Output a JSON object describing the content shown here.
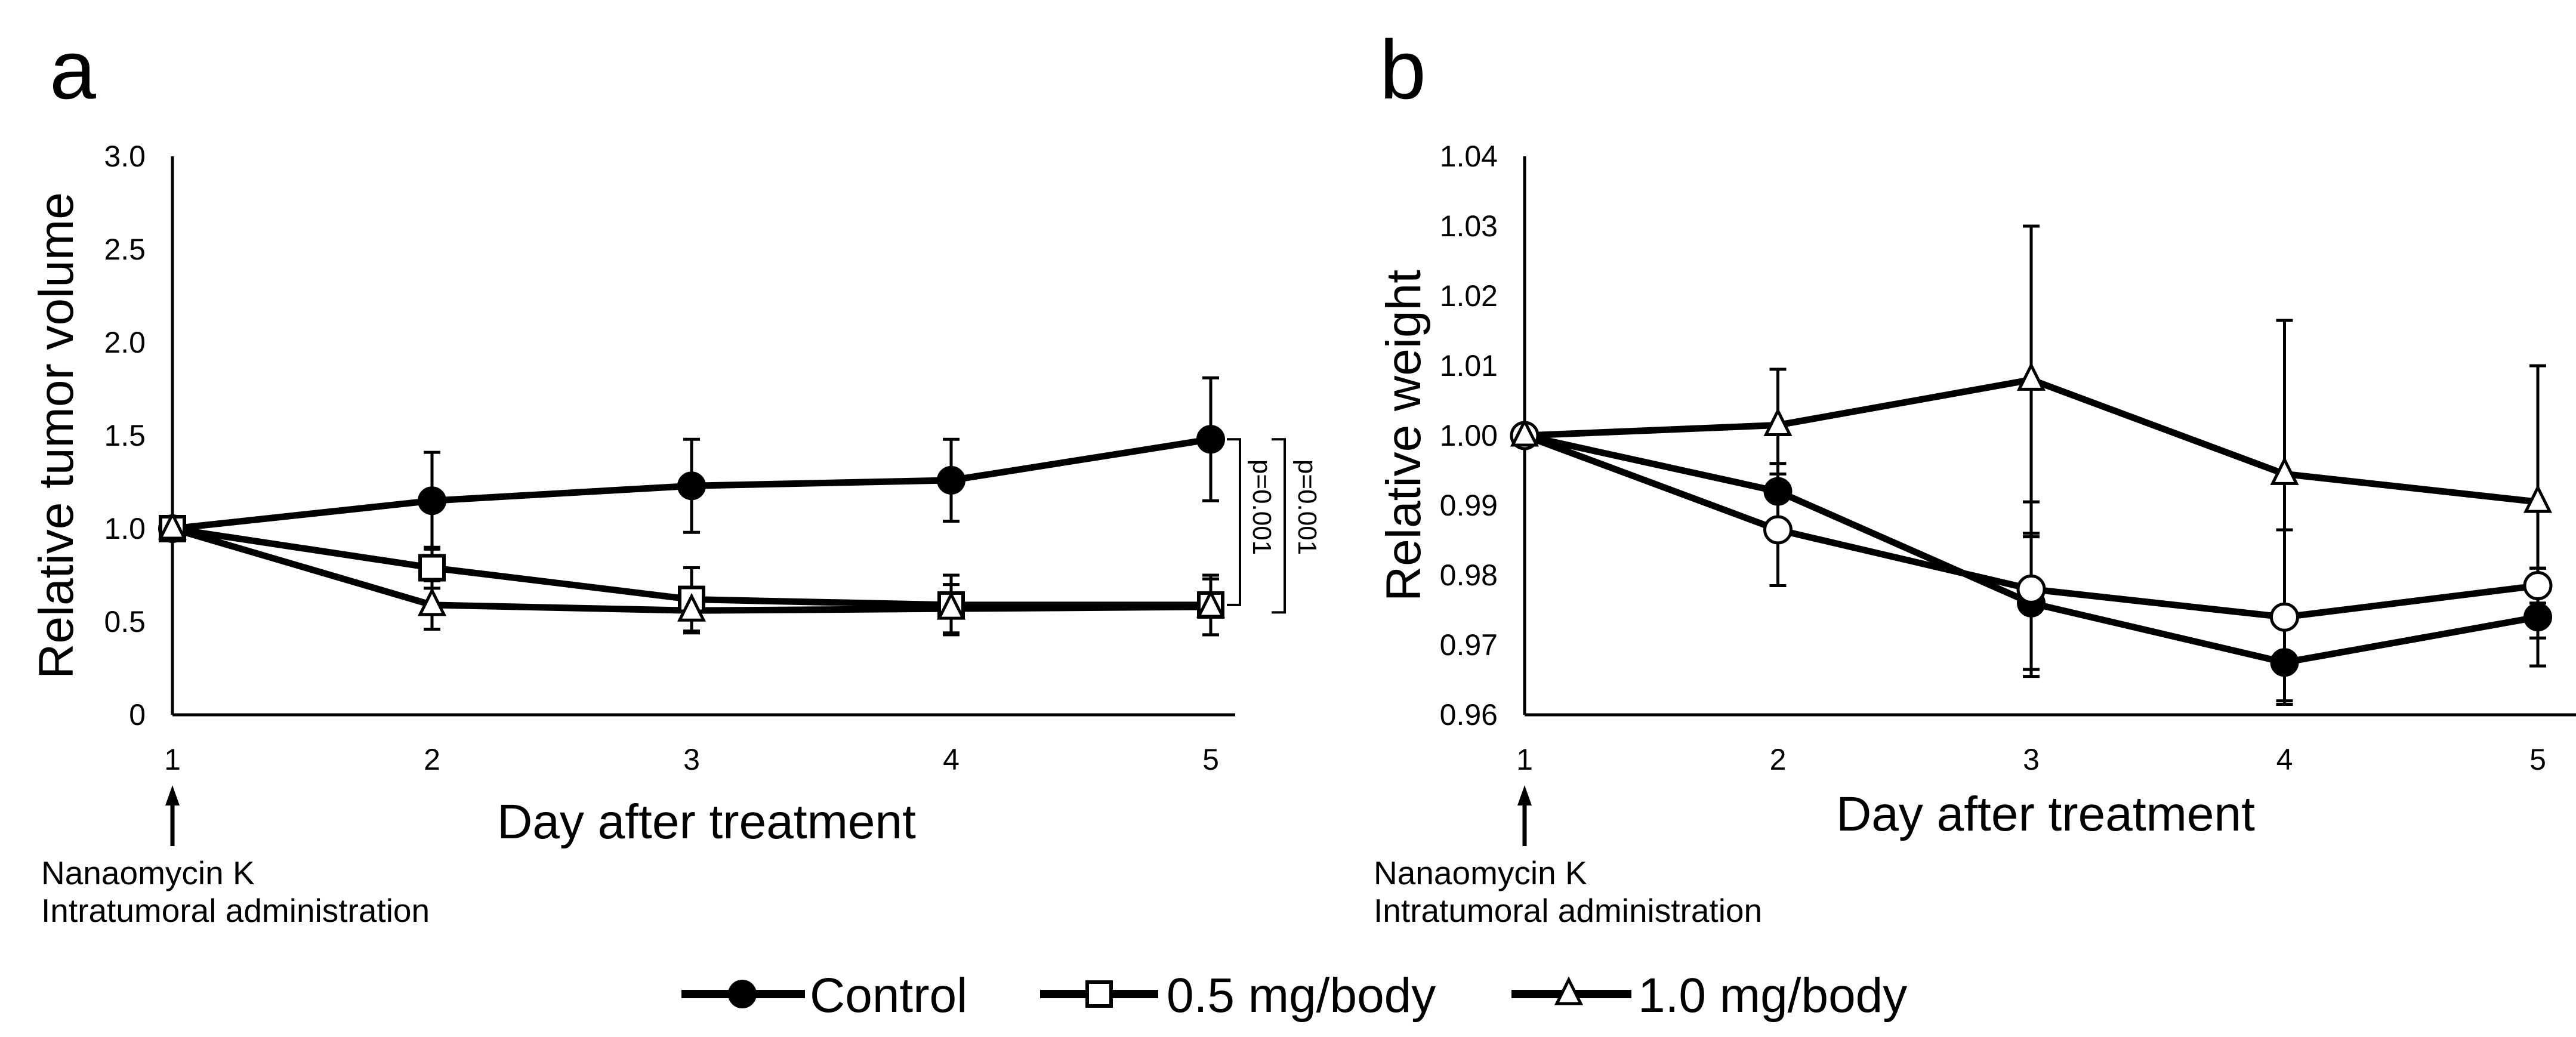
{
  "chart_data": [
    {
      "type": "line",
      "panel_label": "a",
      "xlabel": "Day after treatment",
      "ylabel": "Relative tumor volume",
      "x": [
        1,
        2,
        3,
        4,
        5
      ],
      "x_tick_labels": [
        "1",
        "2",
        "3",
        "4",
        "5"
      ],
      "ylim": [
        0,
        3.0
      ],
      "y_tick_labels": [
        "0",
        "0.5",
        "1.0",
        "1.5",
        "2.0",
        "2.5",
        "3.0"
      ],
      "y_ticks": [
        0,
        0.5,
        1.0,
        1.5,
        2.0,
        2.5,
        3.0
      ],
      "series": [
        {
          "name": "Control",
          "marker": "filled-circle",
          "values": [
            1.0,
            1.15,
            1.23,
            1.26,
            1.48
          ],
          "errors": [
            0,
            0.26,
            0.25,
            0.22,
            0.33
          ]
        },
        {
          "name": "0.5 mg/body",
          "marker": "open-square",
          "values": [
            1.0,
            0.79,
            0.62,
            0.59,
            0.59
          ],
          "errors": [
            0,
            0.11,
            0.17,
            0.16,
            0.16
          ]
        },
        {
          "name": "1.0 mg/body",
          "marker": "open-triangle",
          "values": [
            1.0,
            0.59,
            0.56,
            0.57,
            0.58
          ],
          "errors": [
            0,
            0.13,
            0.12,
            0.13,
            0.15
          ]
        }
      ],
      "annotations": {
        "arrow_note_line1": "Nanaomycin K",
        "arrow_note_line2": "Intratumoral administration",
        "p_values": [
          {
            "label": "p=0.001",
            "between": [
              "Control",
              "0.5 mg/body"
            ],
            "range": [
              1.48,
              0.59
            ]
          },
          {
            "label": "p=0.001",
            "between": [
              "Control",
              "1.0 mg/body"
            ],
            "range": [
              1.48,
              0.55
            ]
          }
        ]
      },
      "grid": false
    },
    {
      "type": "line",
      "panel_label": "b",
      "xlabel": "Day after treatment",
      "ylabel": "Relative weight",
      "x": [
        1,
        2,
        3,
        4,
        5
      ],
      "x_tick_labels": [
        "1",
        "2",
        "3",
        "4",
        "5"
      ],
      "ylim": [
        0.96,
        1.04
      ],
      "y_tick_labels": [
        "0.96",
        "0.97",
        "0.98",
        "0.99",
        "1.00",
        "1.01",
        "1.02",
        "1.03",
        "1.04"
      ],
      "y_ticks": [
        0.96,
        0.97,
        0.98,
        0.99,
        1.0,
        1.01,
        1.02,
        1.03,
        1.04
      ],
      "series": [
        {
          "name": "Control",
          "marker": "filled-circle",
          "values": [
            1.0,
            0.992,
            0.976,
            0.9675,
            0.974
          ],
          "errors": [
            0,
            0.004,
            0.0095,
            0.0055,
            0.007
          ]
        },
        {
          "name": "0.5 mg/body",
          "marker": "open-circle",
          "values": [
            1.0,
            0.9865,
            0.978,
            0.974,
            0.9785
          ],
          "errors": [
            0,
            0.008,
            0.0125,
            0.0125,
            0.0025
          ]
        },
        {
          "name": "1.0 mg/body",
          "marker": "open-triangle",
          "values": [
            1.0,
            1.0015,
            1.008,
            0.9945,
            0.9905
          ],
          "errors": [
            0,
            0.008,
            0.022,
            0.022,
            0.0195
          ]
        }
      ],
      "annotations": {
        "arrow_note_line1": "Nanaomycin K",
        "arrow_note_line2": "Intratumoral administration"
      },
      "grid": false
    }
  ],
  "legend": {
    "placement": "bottom-center",
    "items": [
      {
        "label": "Control",
        "marker": "filled-circle"
      },
      {
        "label": "0.5 mg/body",
        "marker": "open-square"
      },
      {
        "label": "1.0 mg/body",
        "marker": "open-triangle"
      }
    ]
  }
}
